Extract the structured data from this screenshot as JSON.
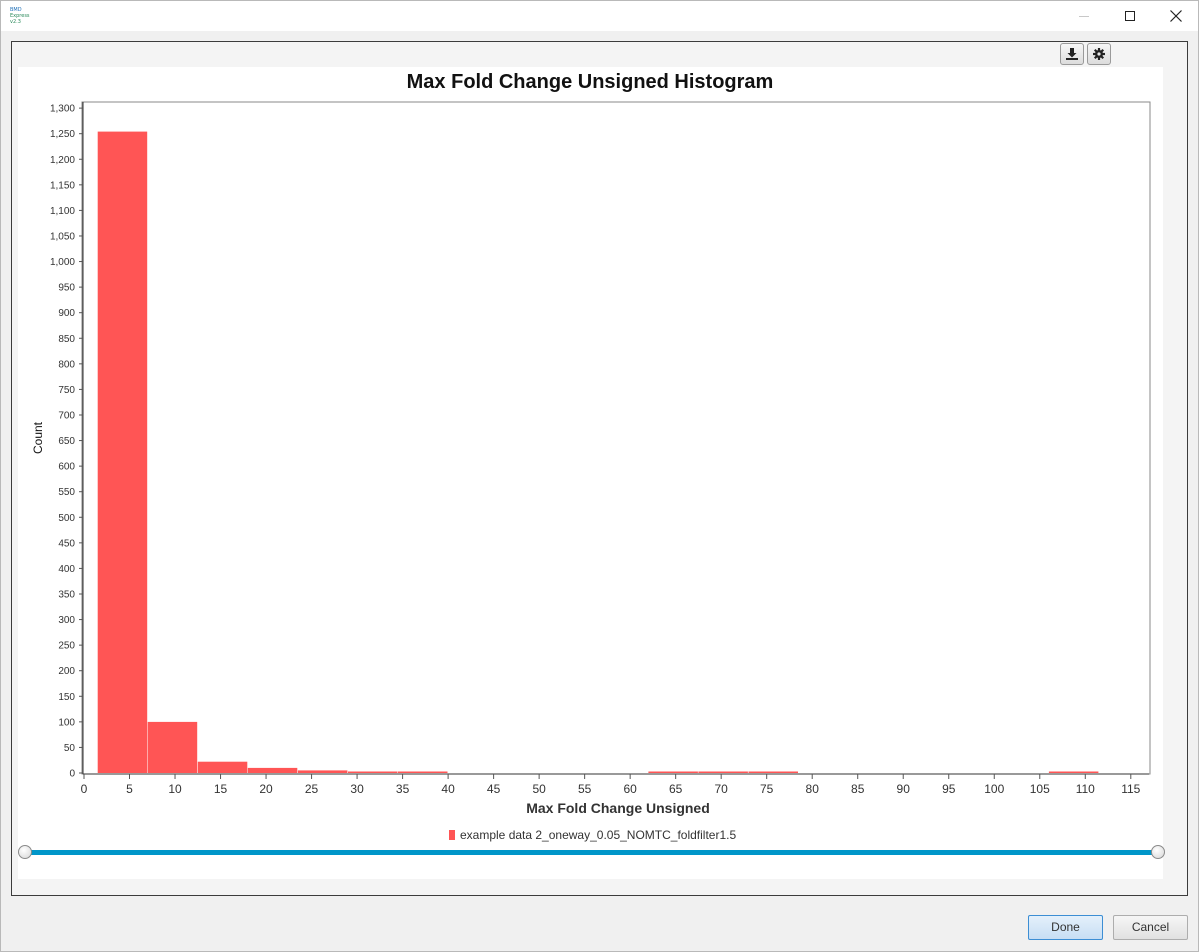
{
  "window": {
    "app_icon_text": [
      "BMD",
      "Express",
      "v2.3"
    ],
    "controls": [
      "minimize",
      "maximize",
      "close"
    ]
  },
  "toolbar": {
    "download_icon": "download-icon",
    "settings_icon": "gear-icon"
  },
  "chart_data": {
    "type": "bar",
    "title": "Max Fold Change Unsigned Histogram",
    "xlabel": "Max Fold Change Unsigned",
    "ylabel": "Count",
    "xlim": [
      0,
      117
    ],
    "ylim": [
      0,
      1310
    ],
    "x_ticks": [
      0,
      5,
      10,
      15,
      20,
      25,
      30,
      35,
      40,
      45,
      50,
      55,
      60,
      65,
      70,
      75,
      80,
      85,
      90,
      95,
      100,
      105,
      110,
      115
    ],
    "y_ticks": [
      0,
      50,
      100,
      150,
      200,
      250,
      300,
      350,
      400,
      450,
      500,
      550,
      600,
      650,
      700,
      750,
      800,
      850,
      900,
      950,
      1000,
      1050,
      1100,
      1150,
      1200,
      1250,
      1300
    ],
    "bin_width": 5.5,
    "bin_edges": [
      1.5,
      7,
      12.5,
      18,
      23.5,
      29,
      34.5,
      40,
      45.5,
      51,
      56.5,
      62,
      67.5,
      73,
      78.5,
      84,
      89.5,
      95,
      100.5,
      106,
      111.5,
      117
    ],
    "values": [
      1254,
      100,
      22,
      10,
      5,
      1,
      1,
      0,
      0,
      0,
      0,
      1,
      1,
      1,
      0,
      0,
      0,
      0,
      0,
      1,
      0
    ],
    "grid": false,
    "legend_position": "bottom",
    "series": [
      {
        "name": "example data 2_oneway_0.05_NOMTC_foldfilter1.5",
        "color": "#ff5555"
      }
    ]
  },
  "slider": {
    "min": 0,
    "max": 1
  },
  "buttons": {
    "done": "Done",
    "cancel": "Cancel"
  }
}
